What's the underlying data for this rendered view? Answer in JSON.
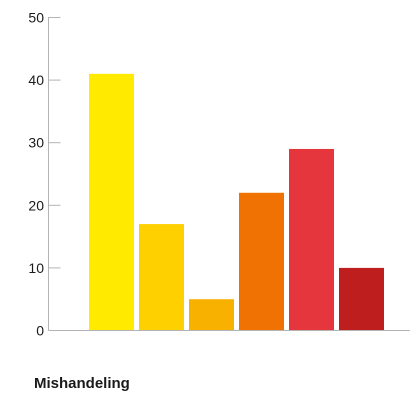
{
  "chart_data": {
    "type": "bar",
    "categories": [
      "",
      "",
      "",
      "",
      "",
      ""
    ],
    "values": [
      41,
      17,
      5,
      22,
      29,
      10
    ],
    "colors": [
      "#ffea00",
      "#ffd000",
      "#f9b100",
      "#ef7203",
      "#e5363e",
      "#bf1e1e"
    ],
    "title": "",
    "xlabel": "Mishandeling",
    "ylabel": "",
    "ylim": [
      0,
      50
    ],
    "yticks": [
      0,
      10,
      20,
      30,
      40,
      50
    ],
    "grid": false,
    "legend": "none",
    "axis_color": "#b3b3b3"
  }
}
